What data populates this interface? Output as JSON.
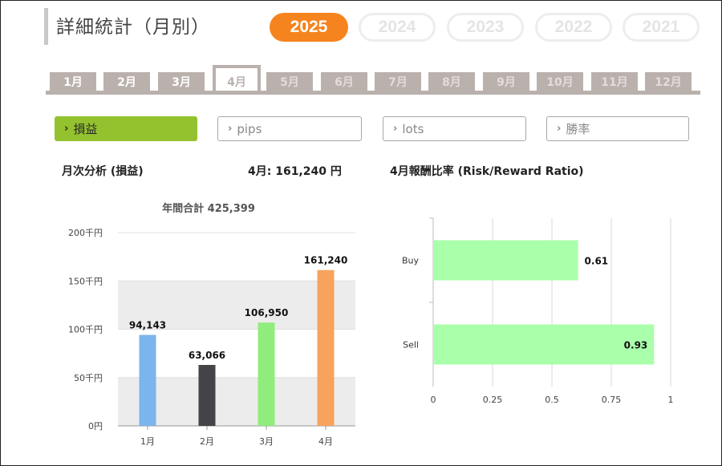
{
  "page": {
    "title": "詳細統計（月別）"
  },
  "years": [
    {
      "label": "2025",
      "active": true
    },
    {
      "label": "2024",
      "active": false
    },
    {
      "label": "2023",
      "active": false
    },
    {
      "label": "2022",
      "active": false
    },
    {
      "label": "2021",
      "active": false
    }
  ],
  "months": [
    {
      "label": "1月",
      "state": "enabled"
    },
    {
      "label": "2月",
      "state": "enabled"
    },
    {
      "label": "3月",
      "state": "enabled"
    },
    {
      "label": "4月",
      "state": "active"
    },
    {
      "label": "5月",
      "state": "disabled"
    },
    {
      "label": "6月",
      "state": "disabled"
    },
    {
      "label": "7月",
      "state": "disabled"
    },
    {
      "label": "8月",
      "state": "disabled"
    },
    {
      "label": "9月",
      "state": "disabled"
    },
    {
      "label": "10月",
      "state": "disabled"
    },
    {
      "label": "11月",
      "state": "disabled"
    },
    {
      "label": "12月",
      "state": "disabled"
    }
  ],
  "filters": [
    {
      "label": "損益",
      "active": true
    },
    {
      "label": "pips",
      "active": false
    },
    {
      "label": "lots",
      "active": false
    },
    {
      "label": "勝率",
      "active": false
    }
  ],
  "left_panel": {
    "heading": "月次分析 (損益)",
    "month_total_label": "4月: 161,240 円"
  },
  "right_panel": {
    "heading": "4月報酬比率 (Risk/Reward Ratio)"
  },
  "colors": {
    "accent_orange": "#f5841f",
    "filter_green": "#93c22e",
    "tab_gray": "#bab1ad",
    "rr_bar": "#aaffaa"
  },
  "chart_data": [
    {
      "type": "bar",
      "title": "年間合計 425,399",
      "categories": [
        "1月",
        "2月",
        "3月",
        "4月"
      ],
      "values": [
        94143,
        63066,
        106950,
        161240
      ],
      "data_labels": [
        "94,143",
        "63,066",
        "106,950",
        "161,240"
      ],
      "bar_colors": [
        "#7cb5ec",
        "#434348",
        "#90ed7d",
        "#f7a35c"
      ],
      "yticks": [
        "0円",
        "50千円",
        "100千円",
        "150千円",
        "200千円"
      ],
      "ylim": [
        0,
        200000
      ],
      "grid": "alternating bands"
    },
    {
      "type": "bar",
      "orientation": "horizontal",
      "categories": [
        "Buy",
        "Sell"
      ],
      "values": [
        0.61,
        0.93
      ],
      "data_labels": [
        "0.61",
        "0.93"
      ],
      "xticks": [
        "0",
        "0.25",
        "0.5",
        "0.75",
        "1"
      ],
      "xlim": [
        0,
        1
      ],
      "grid": "vertical lines"
    }
  ]
}
